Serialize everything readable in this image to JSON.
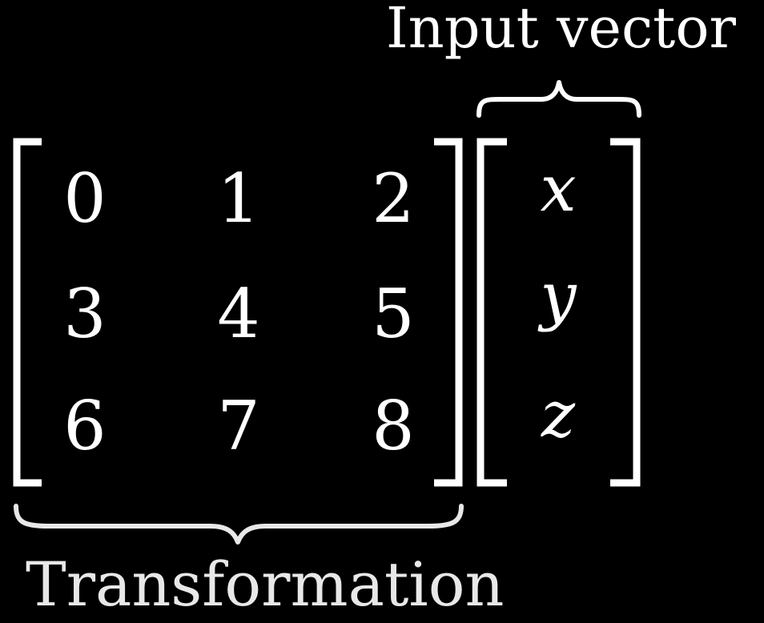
{
  "labels": {
    "input_vector": "Input vector",
    "transformation": "Transformation"
  },
  "matrix": {
    "rows": [
      [
        "0",
        "1",
        "2"
      ],
      [
        "3",
        "4",
        "5"
      ],
      [
        "6",
        "7",
        "8"
      ]
    ]
  },
  "vector": {
    "entries": [
      "x",
      "y",
      "z"
    ]
  },
  "colors": {
    "background": "#000000",
    "foreground": "#ffffff",
    "label_transformation": "#e8e8e8"
  }
}
